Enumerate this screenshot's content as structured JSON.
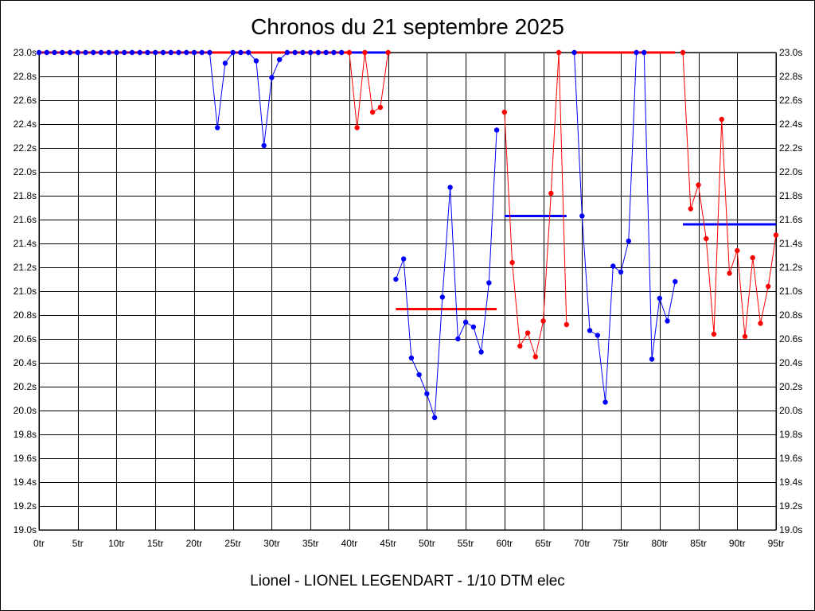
{
  "chart_data": {
    "type": "line",
    "title": "Chronos du 21 septembre 2025",
    "footer": "Lionel - LIONEL LEGENDART - 1/10 DTM elec",
    "xlim": [
      0,
      95
    ],
    "ylim": [
      19.0,
      23.0
    ],
    "x_ticks": [
      0,
      5,
      10,
      15,
      20,
      25,
      30,
      35,
      40,
      45,
      50,
      55,
      60,
      65,
      70,
      75,
      80,
      85,
      90,
      95
    ],
    "x_tick_labels": [
      "0tr",
      "5tr",
      "10tr",
      "15tr",
      "20tr",
      "25tr",
      "30tr",
      "35tr",
      "40tr",
      "45tr",
      "50tr",
      "55tr",
      "60tr",
      "65tr",
      "70tr",
      "75tr",
      "80tr",
      "85tr",
      "90tr",
      "95tr"
    ],
    "y_ticks": [
      19.0,
      19.2,
      19.4,
      19.6,
      19.8,
      20.0,
      20.2,
      20.4,
      20.6,
      20.8,
      21.0,
      21.2,
      21.4,
      21.6,
      21.8,
      22.0,
      22.2,
      22.4,
      22.6,
      22.8,
      23.0
    ],
    "y_tick_labels": [
      "19.0s",
      "19.2s",
      "19.4s",
      "19.6s",
      "19.8s",
      "20.0s",
      "20.2s",
      "20.4s",
      "20.6s",
      "20.8s",
      "21.0s",
      "21.2s",
      "21.4s",
      "21.6s",
      "21.8s",
      "22.0s",
      "22.2s",
      "22.4s",
      "22.6s",
      "22.8s",
      "23.0s"
    ],
    "grid": true,
    "colors": {
      "blue": "#0000ff",
      "red": "#ff0000",
      "grid": "#000000"
    },
    "series": [
      {
        "color": "#0000ff",
        "points": [
          [
            0,
            23.0
          ],
          [
            1,
            23.0
          ],
          [
            2,
            23.0
          ],
          [
            3,
            23.0
          ],
          [
            4,
            23.0
          ],
          [
            5,
            23.0
          ],
          [
            6,
            23.0
          ],
          [
            7,
            23.0
          ],
          [
            8,
            23.0
          ],
          [
            9,
            23.0
          ],
          [
            10,
            23.0
          ],
          [
            11,
            23.0
          ],
          [
            12,
            23.0
          ],
          [
            13,
            23.0
          ],
          [
            14,
            23.0
          ],
          [
            15,
            23.0
          ],
          [
            16,
            23.0
          ],
          [
            17,
            23.0
          ],
          [
            18,
            23.0
          ],
          [
            19,
            23.0
          ],
          [
            20,
            23.0
          ],
          [
            21,
            23.0
          ],
          [
            22,
            23.0
          ],
          [
            23,
            22.37
          ],
          [
            24,
            22.91
          ],
          [
            25,
            23.0
          ],
          [
            26,
            23.0
          ],
          [
            27,
            23.0
          ],
          [
            28,
            22.93
          ],
          [
            29,
            22.22
          ],
          [
            30,
            22.79
          ],
          [
            31,
            22.94
          ],
          [
            32,
            23.0
          ],
          [
            33,
            23.0
          ],
          [
            34,
            23.0
          ],
          [
            35,
            23.0
          ],
          [
            36,
            23.0
          ],
          [
            37,
            23.0
          ],
          [
            38,
            23.0
          ],
          [
            39,
            23.0
          ]
        ]
      },
      {
        "color": "#ff0000",
        "points": [
          [
            40,
            23.0
          ],
          [
            41,
            22.37
          ],
          [
            42,
            23.0
          ],
          [
            43,
            22.5
          ],
          [
            44,
            22.54
          ],
          [
            45,
            23.0
          ]
        ]
      },
      {
        "color": "#0000ff",
        "points": [
          [
            46,
            21.1
          ],
          [
            47,
            21.27
          ],
          [
            48,
            20.44
          ],
          [
            49,
            20.3
          ],
          [
            50,
            20.14
          ],
          [
            51,
            19.94
          ],
          [
            52,
            20.95
          ],
          [
            53,
            21.87
          ],
          [
            54,
            20.6
          ],
          [
            55,
            20.74
          ],
          [
            56,
            20.7
          ],
          [
            57,
            20.49
          ],
          [
            58,
            21.07
          ],
          [
            59,
            22.35
          ]
        ]
      },
      {
        "color": "#ff0000",
        "points": [
          [
            60,
            22.5
          ],
          [
            61,
            21.24
          ],
          [
            62,
            20.54
          ],
          [
            63,
            20.65
          ],
          [
            64,
            20.45
          ],
          [
            65,
            20.75
          ],
          [
            66,
            21.82
          ],
          [
            67,
            23.0
          ],
          [
            68,
            20.72
          ]
        ]
      },
      {
        "color": "#0000ff",
        "points": [
          [
            69,
            23.0
          ],
          [
            70,
            21.63
          ],
          [
            71,
            20.67
          ],
          [
            72,
            20.63
          ],
          [
            73,
            20.07
          ],
          [
            74,
            21.21
          ],
          [
            75,
            21.16
          ],
          [
            76,
            21.42
          ],
          [
            77,
            23.0
          ],
          [
            78,
            23.0
          ],
          [
            79,
            20.43
          ],
          [
            80,
            20.94
          ],
          [
            81,
            20.75
          ],
          [
            82,
            21.08
          ]
        ]
      },
      {
        "color": "#ff0000",
        "points": [
          [
            83,
            23.0
          ],
          [
            84,
            21.69
          ],
          [
            85,
            21.89
          ],
          [
            86,
            21.44
          ],
          [
            87,
            20.64
          ],
          [
            88,
            22.44
          ],
          [
            89,
            21.15
          ],
          [
            90,
            21.34
          ],
          [
            91,
            20.62
          ],
          [
            92,
            21.28
          ],
          [
            93,
            20.73
          ],
          [
            94,
            21.04
          ],
          [
            95,
            21.47
          ]
        ]
      }
    ],
    "reference_lines": [
      {
        "color": "#ff0000",
        "x": [
          0,
          40
        ],
        "y": 23.0
      },
      {
        "color": "#0000ff",
        "x": [
          40,
          45
        ],
        "y": 23.0
      },
      {
        "color": "#ff0000",
        "x": [
          46,
          59
        ],
        "y": 20.85
      },
      {
        "color": "#0000ff",
        "x": [
          60,
          68
        ],
        "y": 21.63
      },
      {
        "color": "#ff0000",
        "x": [
          69,
          82
        ],
        "y": 23.0
      },
      {
        "color": "#0000ff",
        "x": [
          83,
          95
        ],
        "y": 21.56
      }
    ]
  }
}
